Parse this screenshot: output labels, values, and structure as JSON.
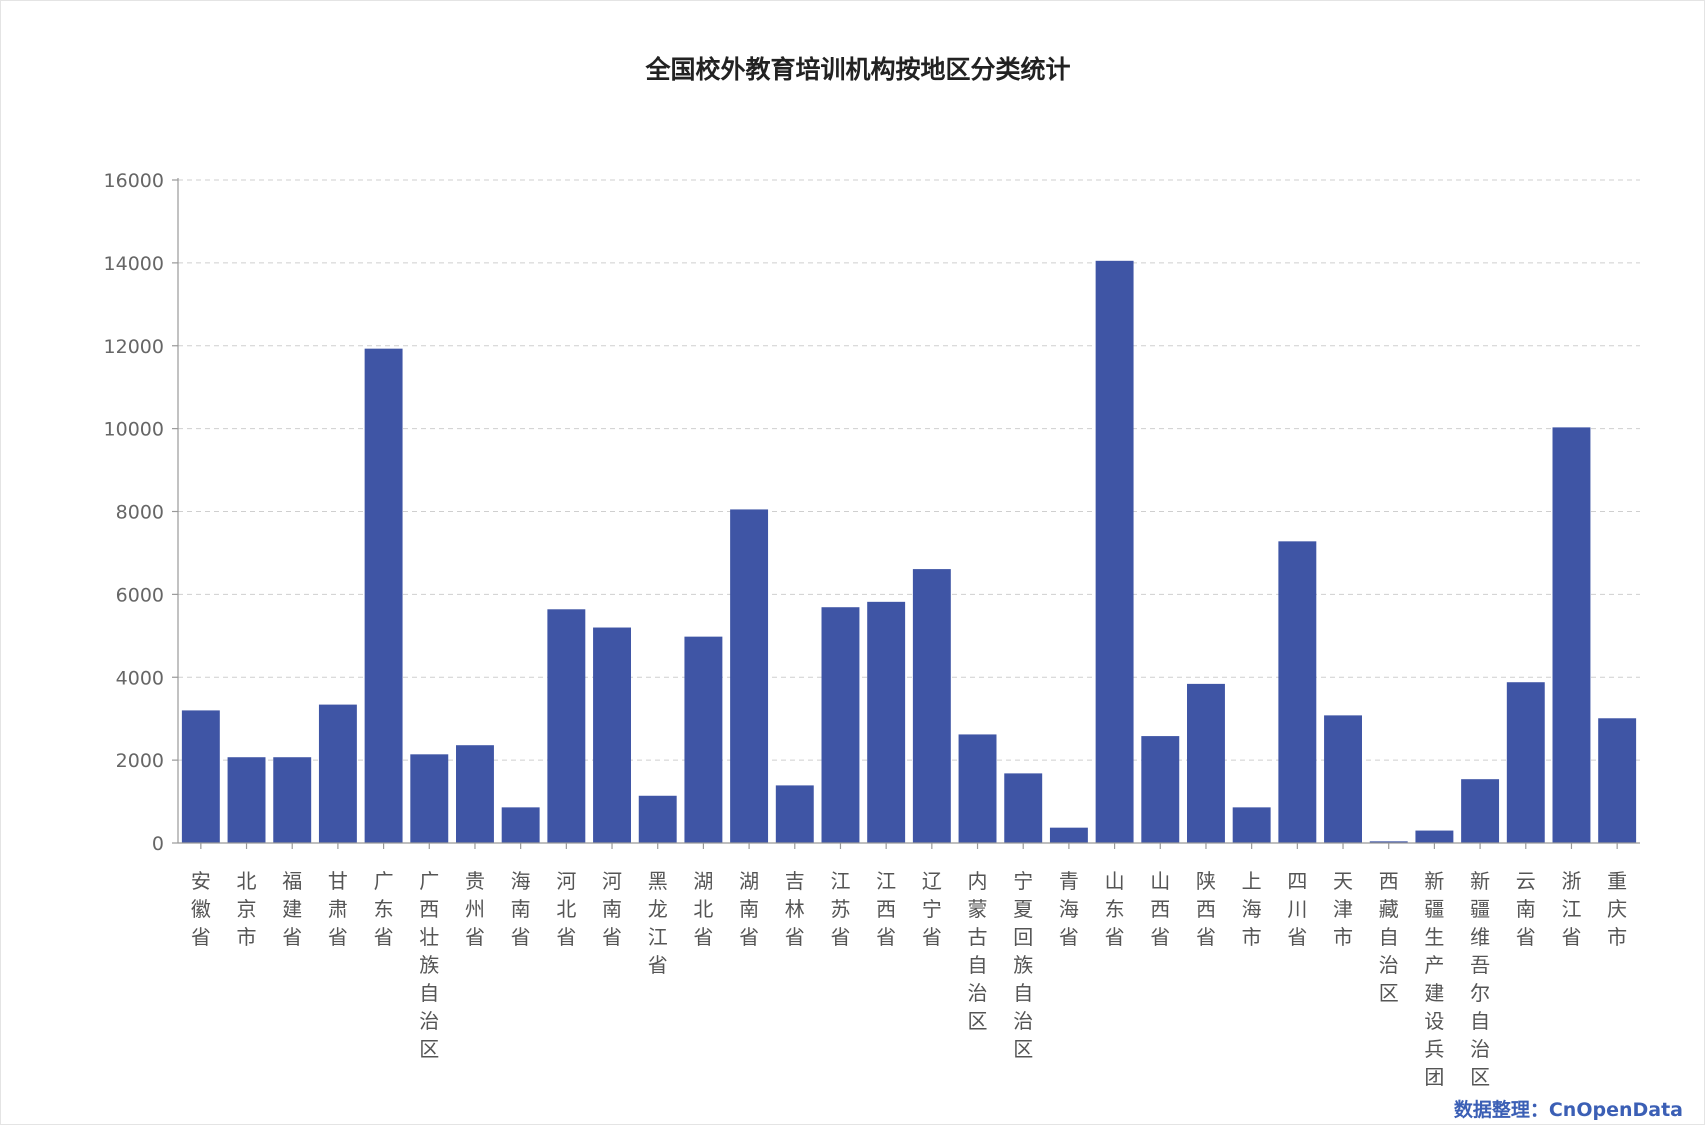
{
  "chart_data": {
    "type": "bar",
    "title": "全国校外教育培训机构按地区分类统计",
    "xlabel": "",
    "ylabel": "",
    "ylim": [
      0,
      16000
    ],
    "yticks": [
      0,
      2000,
      4000,
      6000,
      8000,
      10000,
      12000,
      14000,
      16000
    ],
    "grid": true,
    "bar_color": "#3f55a5",
    "categories": [
      "安徽省",
      "北京市",
      "福建省",
      "甘肃省",
      "广东省",
      "广西壮族自治区",
      "贵州省",
      "海南省",
      "河北省",
      "河南省",
      "黑龙江省",
      "湖北省",
      "湖南省",
      "吉林省",
      "江苏省",
      "江西省",
      "辽宁省",
      "内蒙古自治区",
      "宁夏回族自治区",
      "青海省",
      "山东省",
      "山西省",
      "陕西省",
      "上海市",
      "四川省",
      "天津市",
      "西藏自治区",
      "新疆生产建设兵团",
      "新疆维吾尔自治区",
      "云南省",
      "浙江省",
      "重庆市"
    ],
    "values": [
      3200,
      2070,
      2070,
      3340,
      11930,
      2140,
      2360,
      860,
      5640,
      5200,
      1140,
      4980,
      8050,
      1390,
      5690,
      5820,
      6610,
      2620,
      1680,
      370,
      14050,
      2580,
      3840,
      860,
      7280,
      3080,
      40,
      300,
      1540,
      3880,
      10030,
      3010
    ]
  },
  "source_note": "数据整理：CnOpenData"
}
